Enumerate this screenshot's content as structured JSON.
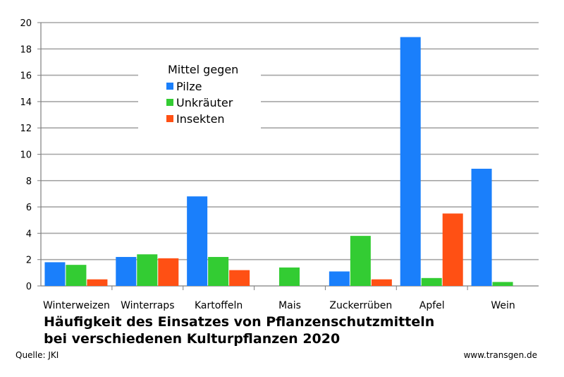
{
  "chart_data": {
    "type": "bar",
    "categories": [
      "Winterweizen",
      "Winterraps",
      "Kartoffeln",
      "Mais",
      "Zuckerrüben",
      "Apfel",
      "Wein"
    ],
    "series": [
      {
        "name": "Pilze",
        "color": "#1a7ffb",
        "values": [
          1.8,
          2.2,
          6.8,
          null,
          1.1,
          18.9,
          8.9
        ]
      },
      {
        "name": "Unkräuter",
        "color": "#33cc33",
        "values": [
          1.6,
          2.4,
          2.2,
          1.4,
          3.8,
          0.6,
          0.3
        ]
      },
      {
        "name": "Insekten",
        "color": "#ff5014",
        "values": [
          0.5,
          2.1,
          1.2,
          null,
          0.5,
          5.5,
          null
        ]
      }
    ],
    "ylim": [
      0,
      20
    ],
    "yticks": [
      "0",
      "2",
      "4",
      "6",
      "8",
      "10",
      "12",
      "14",
      "16",
      "18",
      "20"
    ],
    "grid": true,
    "legend_title": "Mittel gegen",
    "legend_position": "top-left",
    "title_line1": "Häufigkeit des Einsatzes von Pflanzenschutzmitteln",
    "title_line2": "bei verschiedenen Kulturpflanzen 2020"
  },
  "source": "Quelle:  JKI",
  "url": "www.transgen.de"
}
